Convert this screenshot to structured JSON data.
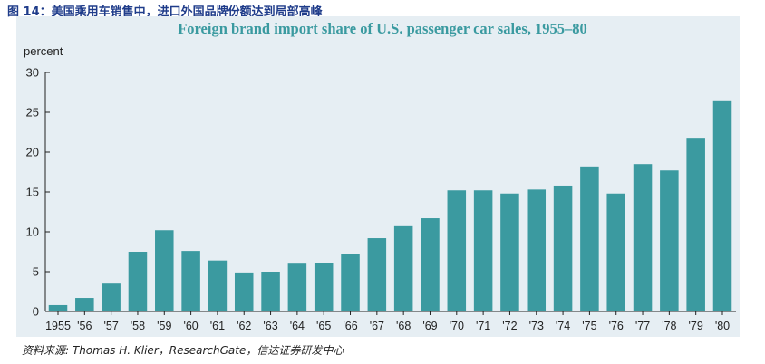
{
  "figure_title": "图 14：美国乘用车销售中，进口外国品牌份额达到局部高峰",
  "source": "资料来源: Thomas H. Klier，ResearchGate，信达证券研发中心",
  "chart_data": {
    "type": "bar",
    "title": "Foreign brand import share of U.S. passenger car sales, 1955–80",
    "xlabel": "",
    "ylabel": "percent",
    "ylim": [
      0,
      30
    ],
    "yticks": [
      0,
      5,
      10,
      15,
      20,
      25,
      30
    ],
    "bar_color": "#3b9aa0",
    "categories": [
      "1955",
      "'56",
      "'57",
      "'58",
      "'59",
      "'60",
      "'61",
      "'62",
      "'63",
      "'64",
      "'65",
      "'66",
      "'67",
      "'68",
      "'69",
      "'70",
      "'71",
      "'72",
      "'73",
      "'74",
      "'75",
      "'76",
      "'77",
      "'78",
      "'79",
      "'80"
    ],
    "values": [
      0.8,
      1.7,
      3.5,
      7.5,
      10.2,
      7.6,
      6.4,
      4.9,
      5.0,
      6.0,
      6.1,
      7.2,
      9.2,
      10.7,
      11.7,
      15.2,
      15.2,
      14.8,
      15.3,
      15.8,
      18.2,
      14.8,
      18.5,
      17.7,
      21.8,
      26.5
    ]
  }
}
